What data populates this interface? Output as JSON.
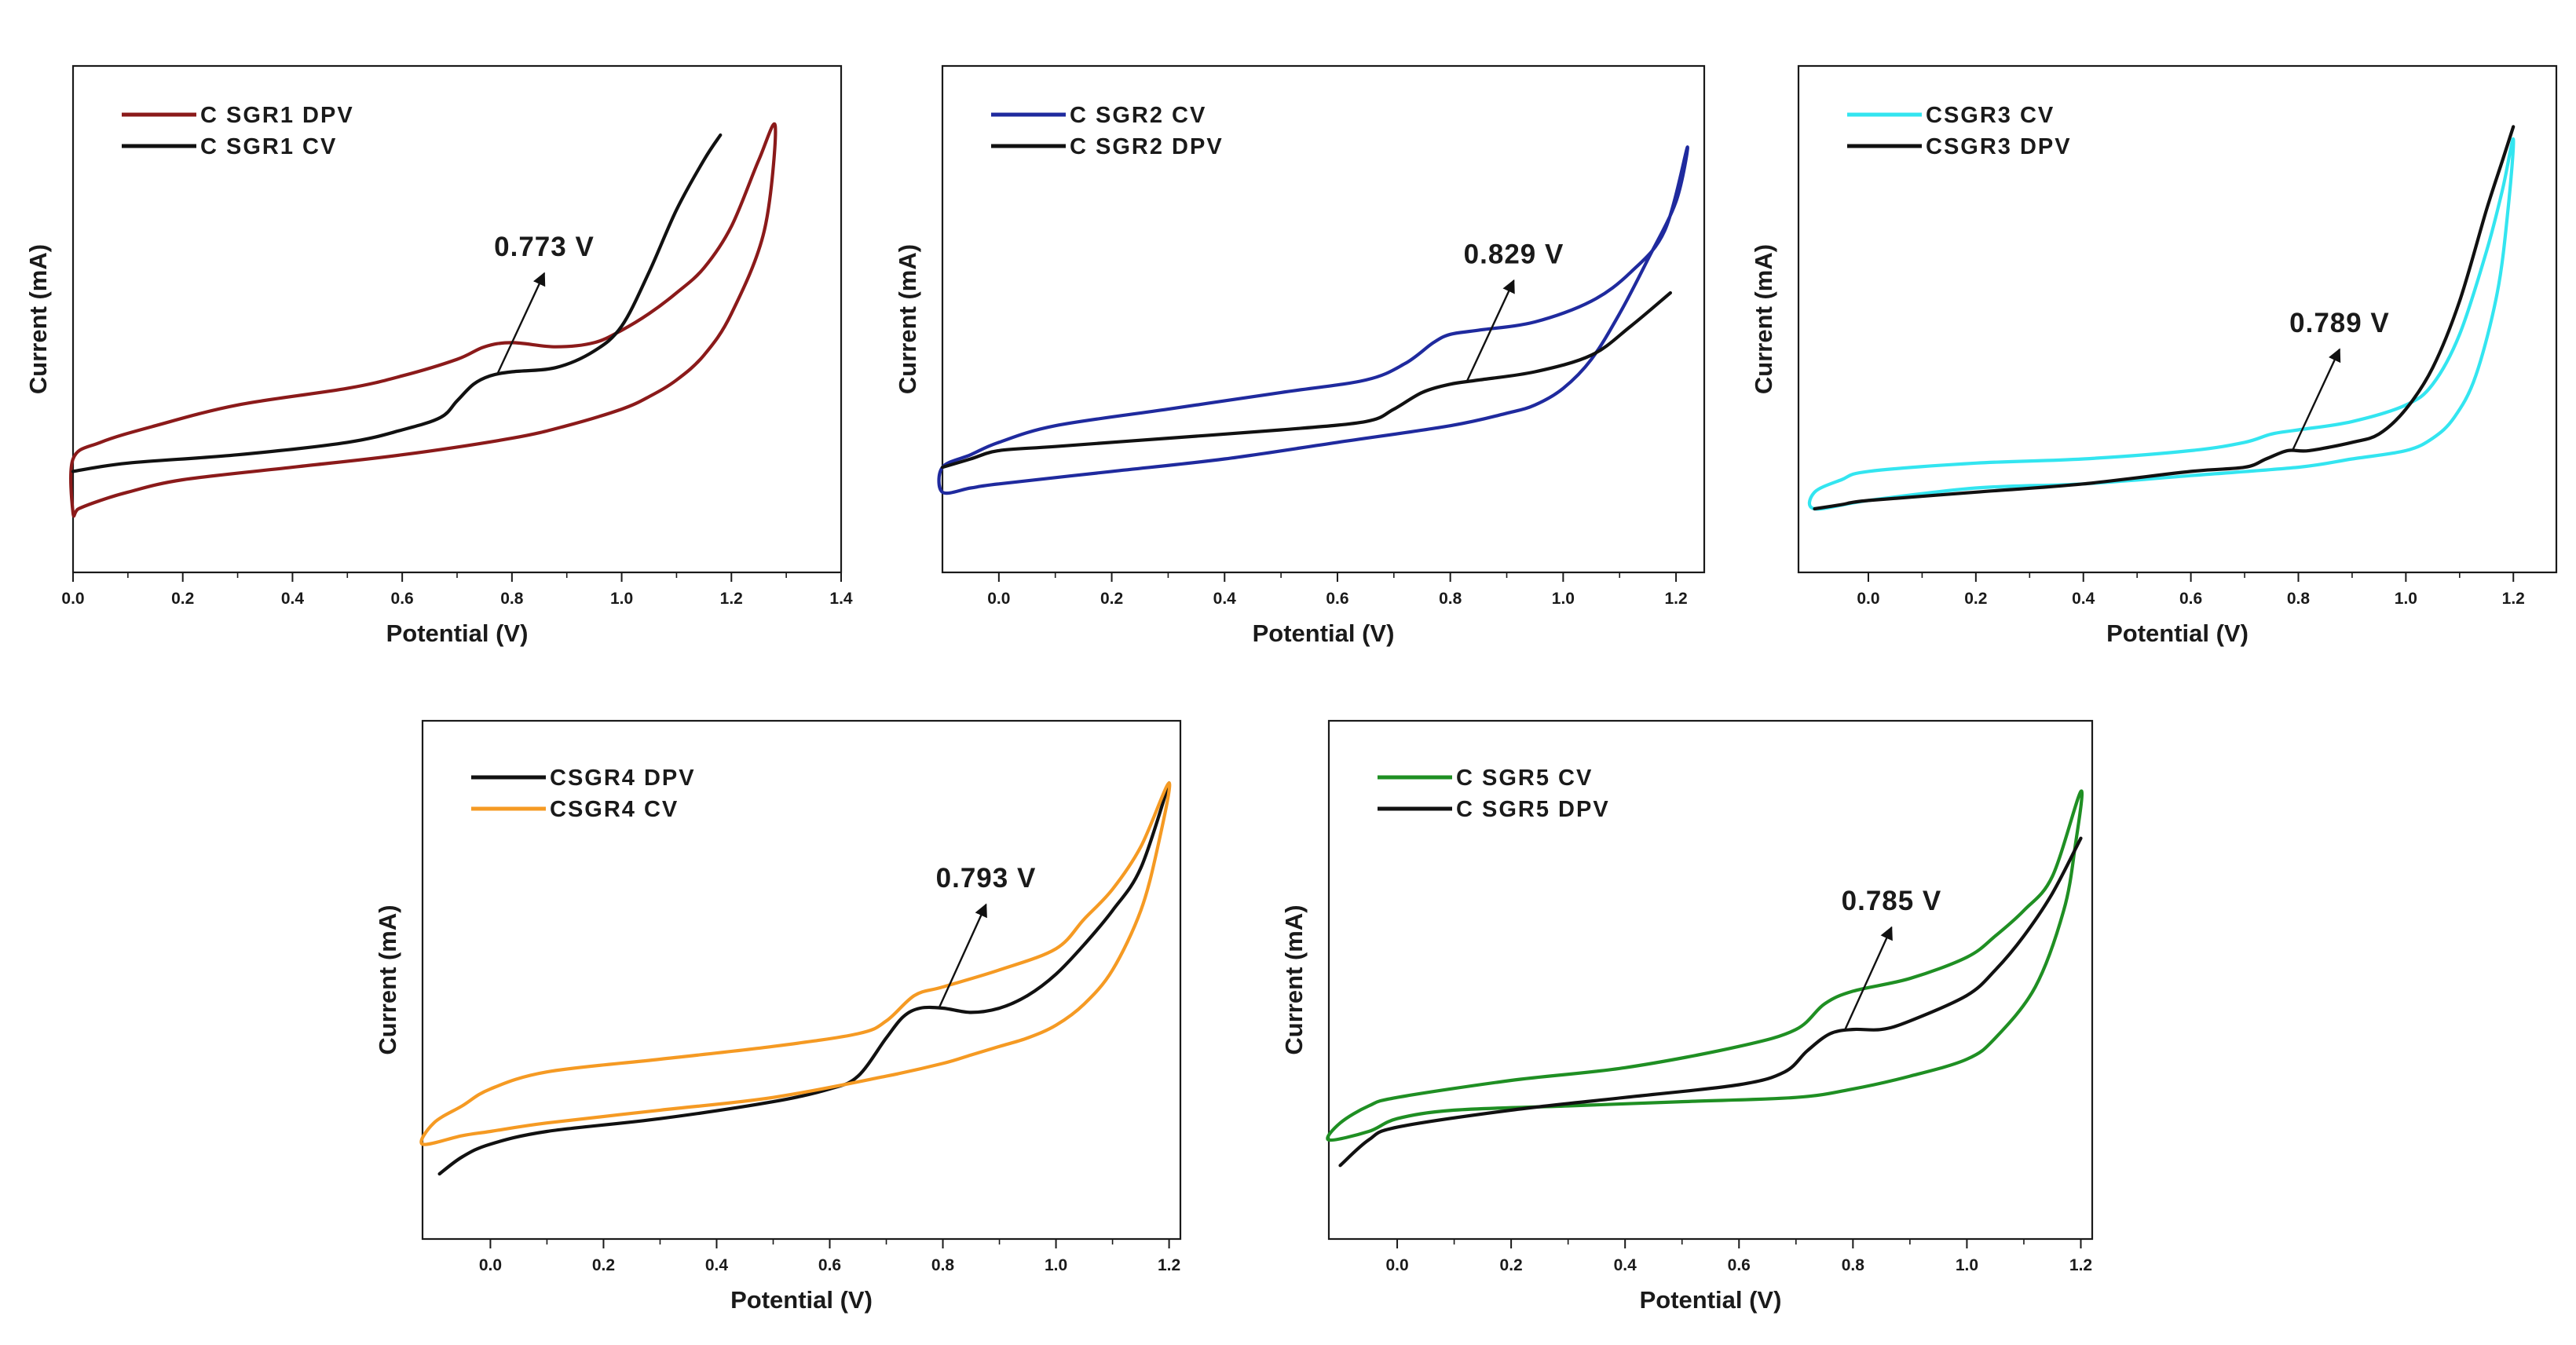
{
  "chart_data": [
    {
      "type": "line",
      "xlabel": "Potential (V)",
      "ylabel": "Current (mA)",
      "xlim": [
        0.0,
        1.4
      ],
      "xticks": [
        0.0,
        0.2,
        0.4,
        0.6,
        0.8,
        1.0,
        1.2,
        1.4
      ],
      "tick_labels": [
        "0.0",
        "0.2",
        "0.4",
        "0.6",
        "0.8",
        "1.0",
        "1.2",
        "1.4"
      ],
      "ylim": [
        0,
        100
      ],
      "legend_position": "top-left",
      "annotation": {
        "text": "0.773 V",
        "x": 0.773
      },
      "series": [
        {
          "name": "C SGR1 DPV",
          "color": "#8b1a1a",
          "closed": true,
          "x": [
            0.0,
            0.05,
            0.15,
            0.3,
            0.5,
            0.6,
            0.7,
            0.75,
            0.8,
            0.88,
            0.95,
            1.0,
            1.05,
            1.1,
            1.15,
            1.2,
            1.25,
            1.28,
            1.26,
            1.2,
            1.15,
            1.1,
            1.05,
            1.0,
            0.9,
            0.8,
            0.6,
            0.4,
            0.2,
            0.1,
            0.05,
            0.01,
            0.0
          ],
          "y": [
            20,
            24,
            28,
            33,
            37,
            40,
            44,
            47,
            48,
            47,
            48,
            51,
            55,
            60,
            66,
            76,
            92,
            100,
            75,
            55,
            45,
            39,
            35,
            32,
            28,
            25,
            21,
            18,
            15,
            12,
            10,
            8,
            7
          ]
        },
        {
          "name": "C SGR1 CV",
          "color": "#111111",
          "closed": false,
          "x": [
            0.0,
            0.1,
            0.3,
            0.5,
            0.6,
            0.67,
            0.7,
            0.73,
            0.76,
            0.8,
            0.88,
            0.95,
            1.0,
            1.05,
            1.1,
            1.15,
            1.18
          ],
          "y": [
            17,
            19,
            21,
            24,
            27,
            30,
            34,
            38,
            40,
            41,
            42,
            46,
            52,
            65,
            80,
            92,
            98
          ]
        }
      ]
    },
    {
      "type": "line",
      "xlabel": "Potential (V)",
      "ylabel": "Current (mA)",
      "xlim": [
        -0.1,
        1.25
      ],
      "xticks": [
        0.0,
        0.2,
        0.4,
        0.6,
        0.8,
        1.0,
        1.2
      ],
      "tick_labels": [
        "0.0",
        "0.2",
        "0.4",
        "0.6",
        "0.8",
        "1.0",
        "1.2"
      ],
      "ylim": [
        0,
        100
      ],
      "legend_position": "top-left",
      "annotation": {
        "text": "0.829 V",
        "x": 0.829
      },
      "series": [
        {
          "name": "C SGR2 CV",
          "color": "#1f2a9e",
          "closed": true,
          "x": [
            -0.1,
            -0.05,
            0.0,
            0.1,
            0.3,
            0.5,
            0.65,
            0.72,
            0.77,
            0.8,
            0.85,
            0.95,
            1.05,
            1.12,
            1.18,
            1.22,
            1.2,
            1.15,
            1.1,
            1.05,
            1.0,
            0.95,
            0.9,
            0.8,
            0.6,
            0.4,
            0.2,
            0.0,
            -0.05,
            -0.1
          ],
          "y": [
            18,
            21,
            24,
            28,
            32,
            36,
            39,
            43,
            48,
            50,
            51,
            53,
            58,
            65,
            75,
            95,
            82,
            68,
            55,
            44,
            37,
            33,
            31,
            28,
            24,
            20,
            17,
            14,
            13,
            12
          ]
        },
        {
          "name": "C SGR2 DPV",
          "color": "#111111",
          "closed": false,
          "x": [
            -0.1,
            -0.05,
            0.0,
            0.1,
            0.3,
            0.5,
            0.65,
            0.7,
            0.75,
            0.8,
            0.85,
            0.95,
            1.05,
            1.12,
            1.19
          ],
          "y": [
            18,
            20,
            22,
            23,
            25,
            27,
            29,
            32,
            36,
            38,
            39,
            41,
            45,
            52,
            60
          ]
        }
      ]
    },
    {
      "type": "line",
      "xlabel": "Potential (V)",
      "ylabel": "Current (mA)",
      "xlim": [
        -0.13,
        1.28
      ],
      "xticks": [
        0.0,
        0.2,
        0.4,
        0.6,
        0.8,
        1.0,
        1.2
      ],
      "tick_labels": [
        "0.0",
        "0.2",
        "0.4",
        "0.6",
        "0.8",
        "1.0",
        "1.2"
      ],
      "ylim": [
        0,
        100
      ],
      "legend_position": "top-left",
      "annotation": {
        "text": "0.789 V",
        "x": 0.789
      },
      "series": [
        {
          "name": "CSGR3 CV",
          "color": "#33e5f0",
          "closed": true,
          "x": [
            -0.1,
            -0.05,
            0.0,
            0.2,
            0.4,
            0.6,
            0.7,
            0.75,
            0.8,
            0.9,
            1.0,
            1.05,
            1.1,
            1.15,
            1.18,
            1.2,
            1.19,
            1.17,
            1.13,
            1.09,
            1.05,
            1.0,
            0.9,
            0.8,
            0.6,
            0.4,
            0.2,
            0.0,
            -0.1
          ],
          "y": [
            12,
            15,
            17,
            19,
            20,
            22,
            24,
            26,
            27,
            29,
            33,
            38,
            50,
            70,
            85,
            97,
            80,
            60,
            40,
            30,
            25,
            22,
            20,
            18,
            16,
            14,
            13,
            10,
            8
          ]
        },
        {
          "name": "CSGR3 DPV",
          "color": "#111111",
          "closed": false,
          "x": [
            -0.1,
            -0.05,
            0.0,
            0.2,
            0.4,
            0.6,
            0.7,
            0.74,
            0.78,
            0.82,
            0.9,
            0.95,
            1.0,
            1.05,
            1.1,
            1.15,
            1.18,
            1.2
          ],
          "y": [
            8,
            9,
            10,
            12,
            14,
            17,
            18,
            20,
            22,
            22,
            24,
            26,
            32,
            42,
            58,
            80,
            92,
            100
          ]
        }
      ]
    },
    {
      "type": "line",
      "xlabel": "Potential (V)",
      "ylabel": "Current (mA)",
      "xlim": [
        -0.12,
        1.22
      ],
      "xticks": [
        0.0,
        0.2,
        0.4,
        0.6,
        0.8,
        1.0,
        1.2
      ],
      "tick_labels": [
        "0.0",
        "0.2",
        "0.4",
        "0.6",
        "0.8",
        "1.0",
        "1.2"
      ],
      "ylim": [
        0,
        100
      ],
      "legend_position": "top-left",
      "annotation": {
        "text": "0.793 V",
        "x": 0.793
      },
      "series": [
        {
          "name": "CSGR4 DPV",
          "color": "#111111",
          "closed": false,
          "x": [
            -0.09,
            -0.05,
            0.0,
            0.1,
            0.3,
            0.5,
            0.6,
            0.65,
            0.7,
            0.73,
            0.76,
            0.8,
            0.85,
            0.9,
            0.95,
            1.0,
            1.05,
            1.1,
            1.15,
            1.2
          ],
          "y": [
            8,
            12,
            15,
            18,
            21,
            25,
            28,
            31,
            40,
            45,
            47,
            47,
            46,
            47,
            50,
            55,
            62,
            70,
            80,
            100
          ]
        },
        {
          "name": "CSGR4 CV",
          "color": "#f59a23",
          "closed": true,
          "x": [
            -0.1,
            -0.05,
            0.0,
            0.1,
            0.3,
            0.5,
            0.65,
            0.7,
            0.75,
            0.8,
            0.9,
            1.0,
            1.05,
            1.1,
            1.15,
            1.2,
            1.18,
            1.15,
            1.1,
            1.05,
            1.0,
            0.95,
            0.9,
            0.85,
            0.8,
            0.7,
            0.5,
            0.3,
            0.1,
            0.0,
            -0.05,
            -0.12
          ],
          "y": [
            20,
            24,
            28,
            32,
            35,
            38,
            41,
            44,
            50,
            52,
            56,
            61,
            68,
            75,
            85,
            100,
            85,
            70,
            56,
            48,
            43,
            40,
            38,
            36,
            34,
            31,
            26,
            23,
            20,
            18,
            17,
            15
          ]
        }
      ]
    },
    {
      "type": "line",
      "xlabel": "Potential (V)",
      "ylabel": "Current (mA)",
      "xlim": [
        -0.12,
        1.22
      ],
      "xticks": [
        0.0,
        0.2,
        0.4,
        0.6,
        0.8,
        1.0,
        1.2
      ],
      "tick_labels": [
        "0.0",
        "0.2",
        "0.4",
        "0.6",
        "0.8",
        "1.0",
        "1.2"
      ],
      "ylim": [
        0,
        100
      ],
      "legend_position": "top-left",
      "annotation": {
        "text": "0.785 V",
        "x": 0.785
      },
      "series": [
        {
          "name": "C SGR5 CV",
          "color": "#1f8f23",
          "closed": true,
          "x": [
            -0.1,
            -0.05,
            0.0,
            0.2,
            0.4,
            0.6,
            0.7,
            0.75,
            0.8,
            0.9,
            1.0,
            1.05,
            1.1,
            1.15,
            1.2,
            1.19,
            1.17,
            1.12,
            1.05,
            1.0,
            0.9,
            0.8,
            0.7,
            0.5,
            0.3,
            0.1,
            0.0,
            -0.05,
            -0.12
          ],
          "y": [
            20,
            24,
            26,
            30,
            33,
            38,
            42,
            48,
            51,
            54,
            59,
            64,
            70,
            78,
            98,
            85,
            70,
            52,
            40,
            35,
            31,
            28,
            26,
            25,
            24,
            23,
            21,
            18,
            16
          ]
        },
        {
          "name": "C SGR5 DPV",
          "color": "#111111",
          "closed": false,
          "x": [
            -0.1,
            -0.05,
            0.0,
            0.2,
            0.4,
            0.6,
            0.68,
            0.72,
            0.76,
            0.8,
            0.85,
            0.9,
            1.0,
            1.05,
            1.1,
            1.15,
            1.2
          ],
          "y": [
            10,
            16,
            19,
            23,
            26,
            29,
            32,
            37,
            41,
            42,
            42,
            44,
            50,
            56,
            64,
            74,
            87
          ]
        }
      ]
    }
  ]
}
